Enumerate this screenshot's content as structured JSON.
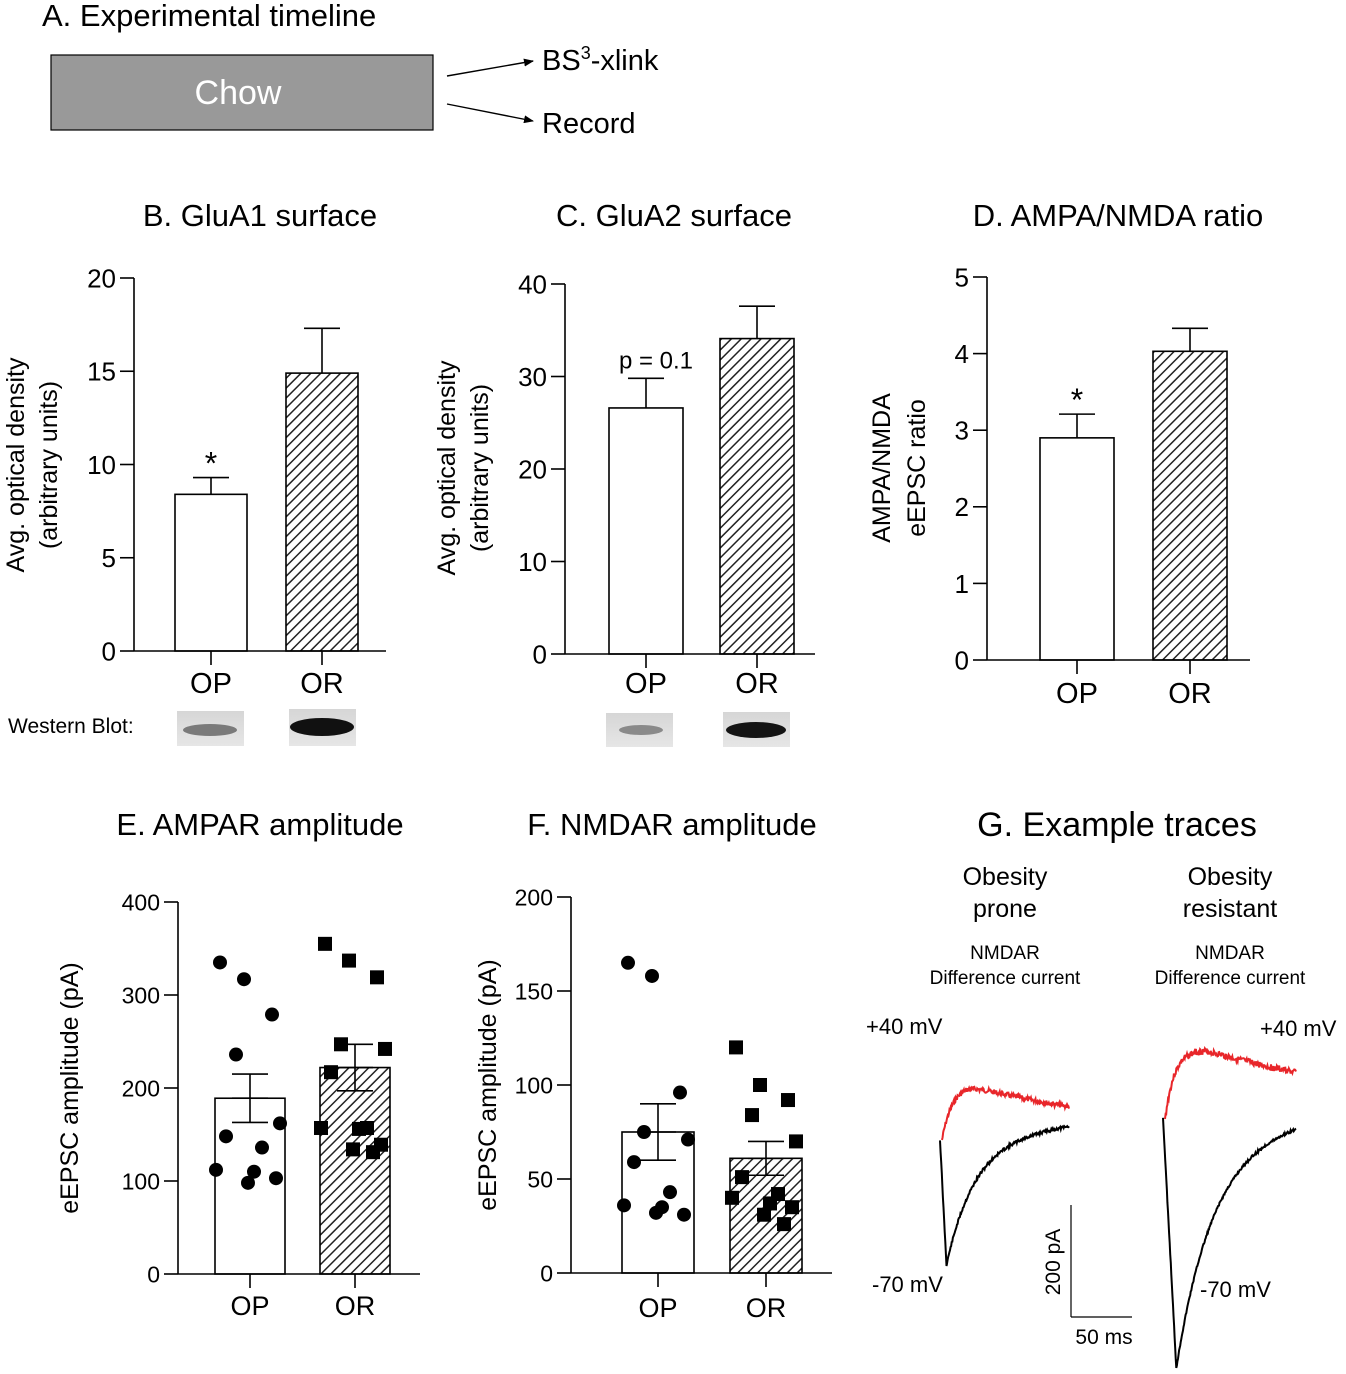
{
  "panel_a": {
    "title": "A. Experimental timeline",
    "box_label": "Chow",
    "arrow1_main": "BS",
    "arrow1_sup": "3",
    "arrow1_rest": "-xlink",
    "arrow2_label": "Record",
    "box_color": "#999999"
  },
  "western_blot_label": "Western Blot:",
  "panel_g": {
    "title": "G. Example traces",
    "left_title_1": "Obesity",
    "left_title_2": "prone",
    "right_title_1": "Obesity",
    "right_title_2": "resistant",
    "sub_1": "NMDAR",
    "sub_2": "Difference current",
    "plus_label": "+40 mV",
    "minus_label": "-70 mV",
    "scale_y": "200 pA",
    "scale_x": "50 ms",
    "plus_color": "#e8262a",
    "minus_color": "#000000"
  },
  "chart_data": [
    {
      "id": "B",
      "type": "bar",
      "title": "B. GluA1 surface",
      "ylabel": "Avg. optical density",
      "ylabel2": "(arbitrary units)",
      "categories": [
        "OP",
        "OR"
      ],
      "values": [
        8.4,
        14.9
      ],
      "sem": [
        0.9,
        2.4
      ],
      "ylim": [
        0,
        20
      ],
      "yticks": [
        0,
        5,
        10,
        15,
        20
      ],
      "annotations": [
        {
          "category": "OP",
          "text": "*"
        }
      ]
    },
    {
      "id": "C",
      "type": "bar",
      "title": "C. GluA2 surface",
      "ylabel": "Avg. optical density",
      "ylabel2": "(arbitrary units)",
      "categories": [
        "OP",
        "OR"
      ],
      "values": [
        26.6,
        34.1
      ],
      "sem": [
        3.2,
        3.5
      ],
      "ylim": [
        0,
        40
      ],
      "yticks": [
        0,
        10,
        20,
        30,
        40
      ],
      "annotations": [
        {
          "category": "OP",
          "text": "p = 0.1"
        }
      ]
    },
    {
      "id": "D",
      "type": "bar",
      "title": "D. AMPA/NMDA ratio",
      "ylabel": "AMPA/NMDA",
      "ylabel2": "eEPSC ratio",
      "categories": [
        "OP",
        "OR"
      ],
      "values": [
        2.9,
        4.03
      ],
      "sem": [
        0.31,
        0.3
      ],
      "ylim": [
        0,
        5
      ],
      "yticks": [
        0,
        1,
        2,
        3,
        4,
        5
      ],
      "annotations": [
        {
          "category": "OP",
          "text": "*"
        }
      ]
    },
    {
      "id": "E",
      "type": "bar",
      "title": "E. AMPAR amplitude",
      "ylabel": "eEPSC amplitude (pA)",
      "categories": [
        "OP",
        "OR"
      ],
      "values": [
        189,
        222
      ],
      "sem": [
        26,
        25
      ],
      "ylim": [
        0,
        400
      ],
      "yticks": [
        0,
        100,
        200,
        300,
        400
      ],
      "points": [
        [
          335,
          317,
          279,
          236,
          162,
          148,
          136,
          112,
          110,
          103,
          98
        ],
        [
          355,
          337,
          319,
          247,
          242,
          217,
          157,
          157,
          156,
          139,
          134,
          131
        ]
      ]
    },
    {
      "id": "F",
      "type": "bar",
      "title": "F. NMDAR amplitude",
      "ylabel": "eEPSC amplitude (pA)",
      "categories": [
        "OP",
        "OR"
      ],
      "values": [
        75,
        61
      ],
      "sem": [
        15,
        9
      ],
      "ylim": [
        0,
        200
      ],
      "yticks": [
        0,
        50,
        100,
        150,
        200
      ],
      "points": [
        [
          165,
          158,
          96,
          75,
          71,
          59,
          43,
          36,
          35,
          31,
          32
        ],
        [
          120,
          100,
          92,
          84,
          70,
          51,
          42,
          40,
          37,
          35,
          31,
          26
        ]
      ]
    }
  ]
}
